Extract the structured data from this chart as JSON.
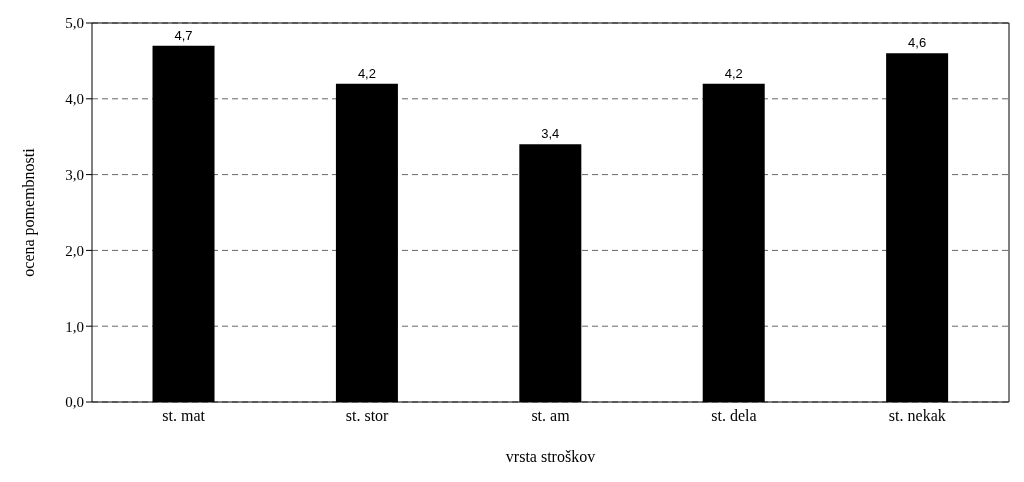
{
  "chart_data": {
    "type": "bar",
    "xlabel": "vrsta stroškov",
    "ylabel": "ocena pomembnosti",
    "categories": [
      "st. mat",
      "st. stor",
      "st. am",
      "st. dela",
      "st. nekak"
    ],
    "values": [
      4.7,
      4.2,
      3.4,
      4.2,
      4.6
    ],
    "value_labels": [
      "4,7",
      "4,2",
      "3,4",
      "4,2",
      "4,6"
    ],
    "color": "#000000",
    "ylim": [
      0,
      5
    ],
    "yticks": [
      {
        "value": 0,
        "label": "0,0"
      },
      {
        "value": 1,
        "label": "1,0"
      },
      {
        "value": 2,
        "label": "2,0"
      },
      {
        "value": 3,
        "label": "3,0"
      },
      {
        "value": 4,
        "label": "4,0"
      },
      {
        "value": 5,
        "label": "5,0"
      }
    ],
    "grid": "y",
    "legend": false
  }
}
